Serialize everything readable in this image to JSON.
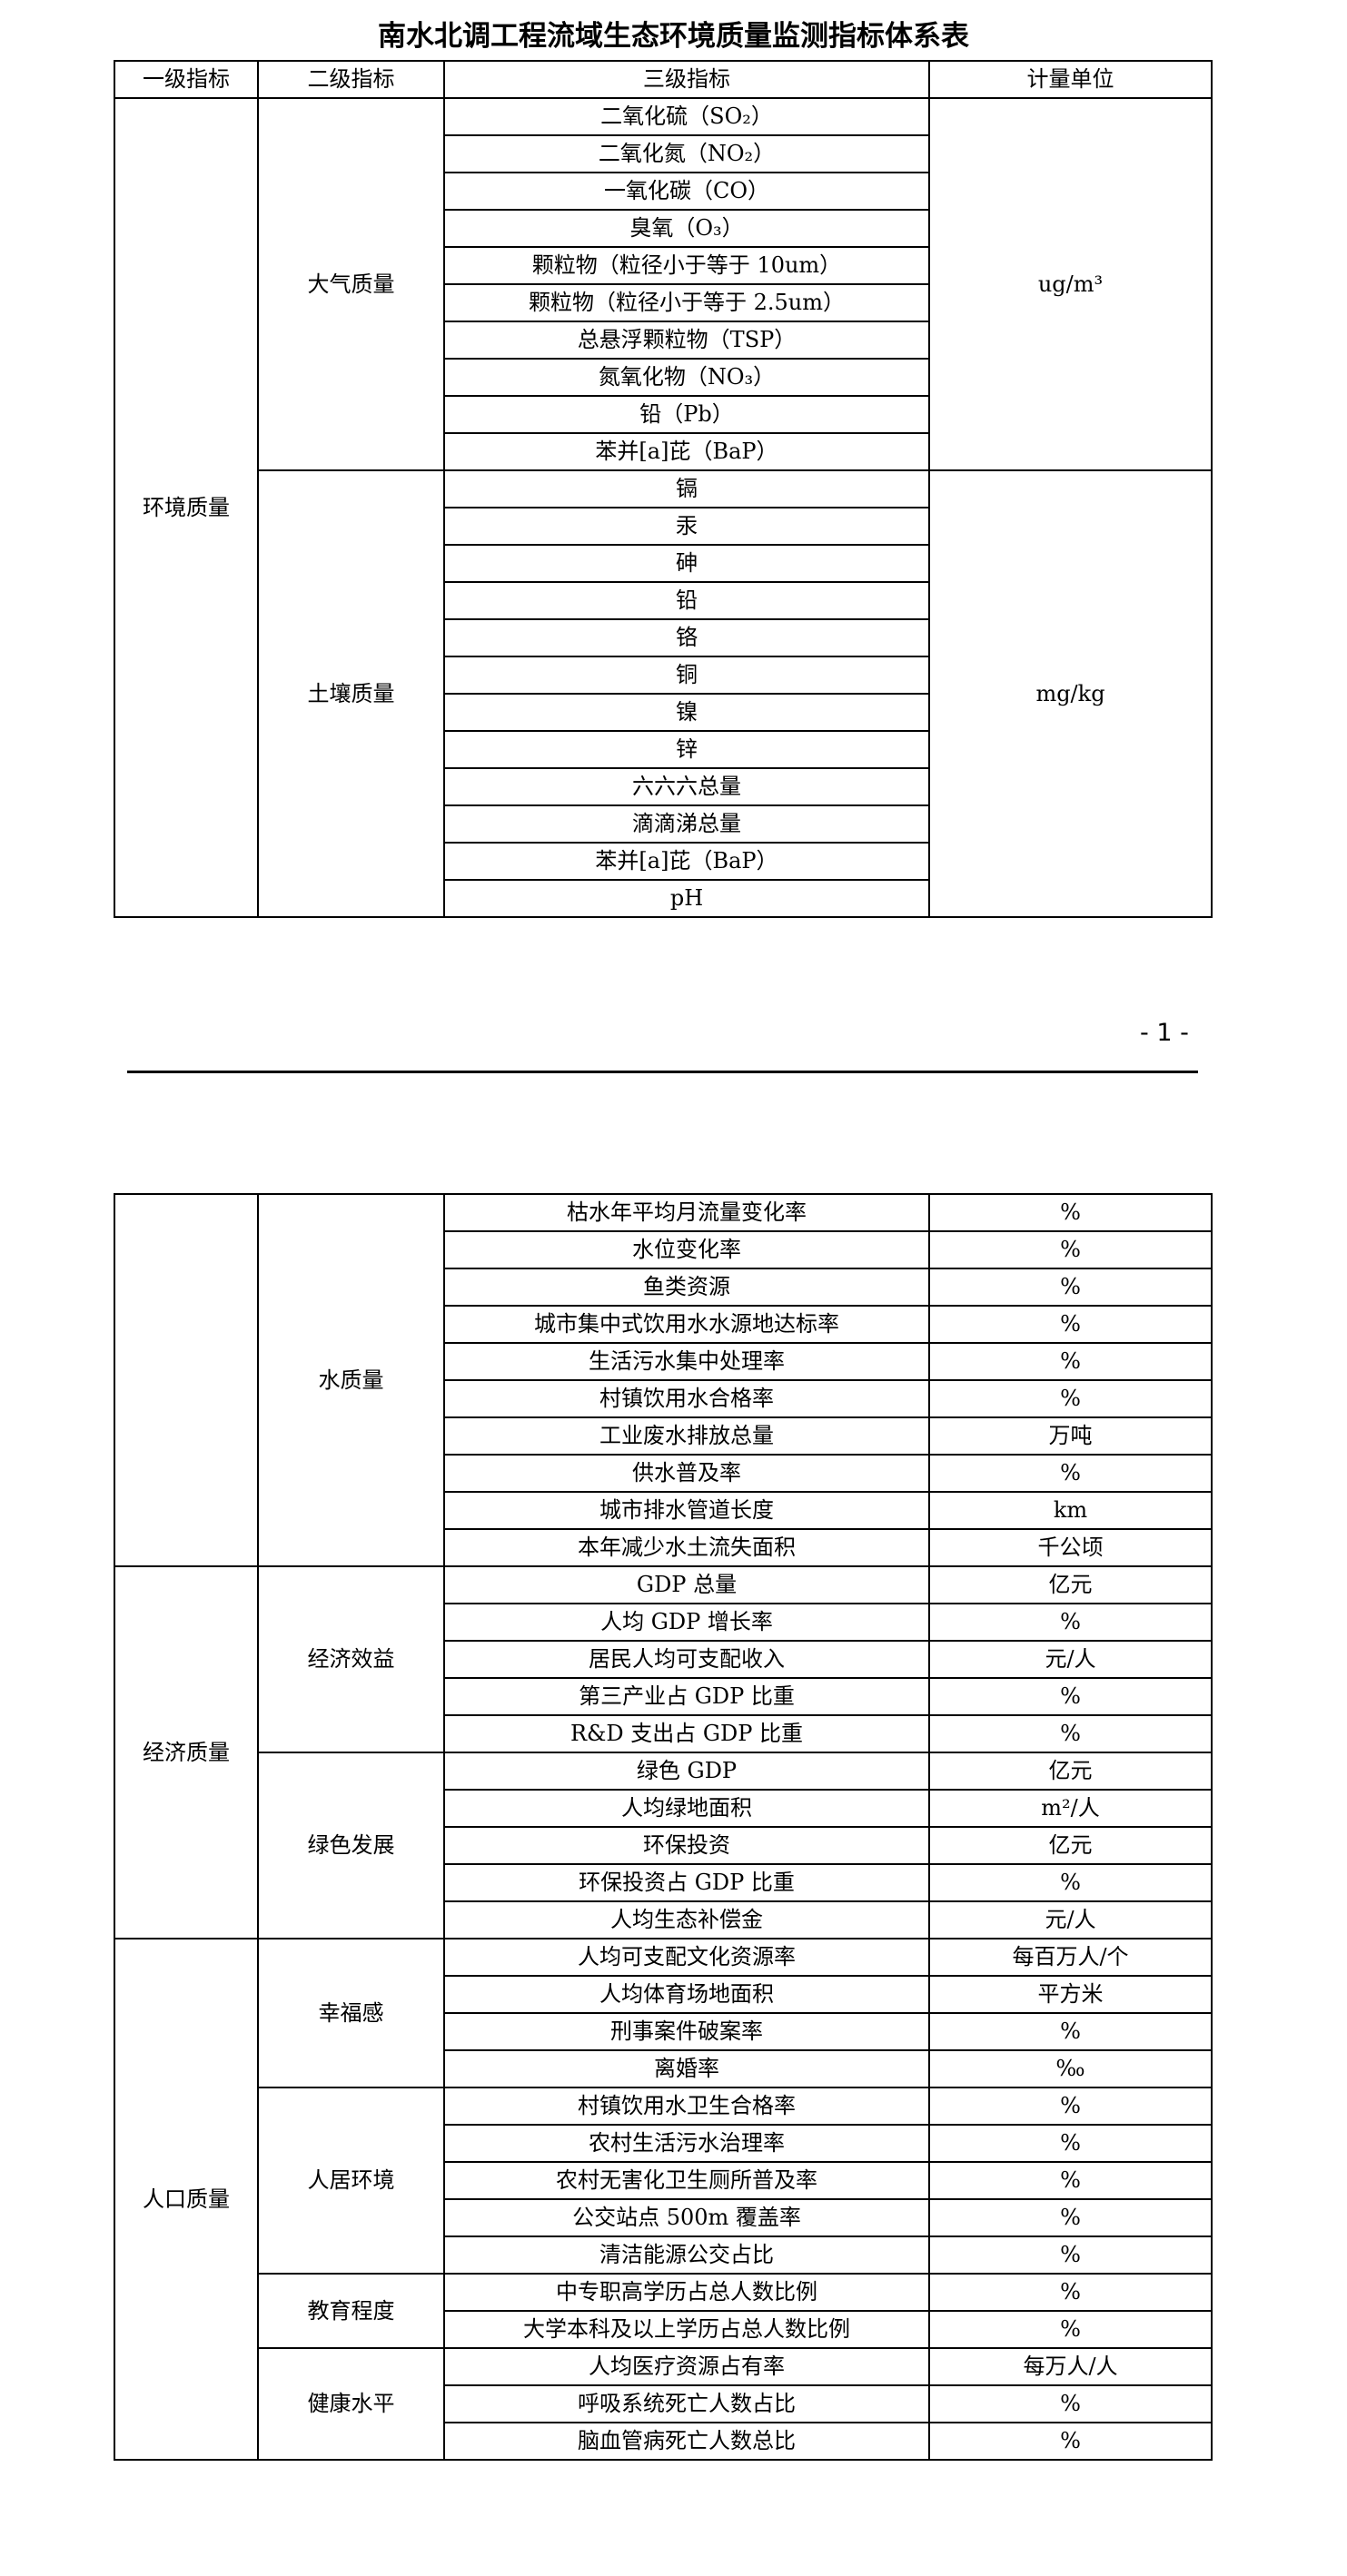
{
  "title": "南水北调工程流域生态环境质量监测指标体系表",
  "headers": [
    "一级指标",
    "二级指标",
    "三级指标",
    "计量单位"
  ],
  "page_number": "- 1 -",
  "tables": [
    {
      "sections": [
        {
          "level1": "环境质量",
          "subs": [
            {
              "level2": "大气质量",
              "unit": "ug/m³",
              "items": [
                {
                  "name": "二氧化硫（SO₂）"
                },
                {
                  "name": "二氧化氮（NO₂）"
                },
                {
                  "name": "一氧化碳（CO）"
                },
                {
                  "name": "臭氧（O₃）"
                },
                {
                  "name": "颗粒物（粒径小于等于 10um）"
                },
                {
                  "name": "颗粒物（粒径小于等于 2.5um）"
                },
                {
                  "name": "总悬浮颗粒物（TSP）"
                },
                {
                  "name": "氮氧化物（NO₃）"
                },
                {
                  "name": "铅（Pb）"
                },
                {
                  "name": "苯并[a]芘（BaP）"
                }
              ]
            },
            {
              "level2": "土壤质量",
              "unit": "mg/kg",
              "items": [
                {
                  "name": "镉"
                },
                {
                  "name": "汞"
                },
                {
                  "name": "砷"
                },
                {
                  "name": "铅"
                },
                {
                  "name": "铬"
                },
                {
                  "name": "铜"
                },
                {
                  "name": "镍"
                },
                {
                  "name": "锌"
                },
                {
                  "name": "六六六总量"
                },
                {
                  "name": "滴滴涕总量"
                },
                {
                  "name": "苯并[a]芘（BaP）"
                },
                {
                  "name": "pH"
                }
              ]
            }
          ]
        }
      ]
    },
    {
      "sections": [
        {
          "level1": "",
          "subs": [
            {
              "level2": "水质量",
              "items": [
                {
                  "name": "枯水年平均月流量变化率",
                  "unit": "%"
                },
                {
                  "name": "水位变化率",
                  "unit": "%"
                },
                {
                  "name": "鱼类资源",
                  "unit": "%"
                },
                {
                  "name": "城市集中式饮用水水源地达标率",
                  "unit": "%"
                },
                {
                  "name": "生活污水集中处理率",
                  "unit": "%"
                },
                {
                  "name": "村镇饮用水合格率",
                  "unit": "%"
                },
                {
                  "name": "工业废水排放总量",
                  "unit": "万吨"
                },
                {
                  "name": "供水普及率",
                  "unit": "%"
                },
                {
                  "name": "城市排水管道长度",
                  "unit": "km"
                },
                {
                  "name": "本年减少水土流失面积",
                  "unit": "千公顷"
                }
              ]
            }
          ]
        },
        {
          "level1": "经济质量",
          "subs": [
            {
              "level2": "经济效益",
              "items": [
                {
                  "name": "GDP 总量",
                  "unit": "亿元"
                },
                {
                  "name": "人均 GDP 增长率",
                  "unit": "%"
                },
                {
                  "name": "居民人均可支配收入",
                  "unit": "元/人"
                },
                {
                  "name": "第三产业占 GDP 比重",
                  "unit": "%"
                },
                {
                  "name": "R&D 支出占 GDP 比重",
                  "unit": "%"
                }
              ]
            },
            {
              "level2": "绿色发展",
              "items": [
                {
                  "name": "绿色 GDP",
                  "unit": "亿元"
                },
                {
                  "name": "人均绿地面积",
                  "unit": "m²/人"
                },
                {
                  "name": "环保投资",
                  "unit": "亿元"
                },
                {
                  "name": "环保投资占 GDP 比重",
                  "unit": "%"
                },
                {
                  "name": "人均生态补偿金",
                  "unit": "元/人"
                }
              ]
            }
          ]
        },
        {
          "level1": "人口质量",
          "subs": [
            {
              "level2": "幸福感",
              "items": [
                {
                  "name": "人均可支配文化资源率",
                  "unit": "每百万人/个"
                },
                {
                  "name": "人均体育场地面积",
                  "unit": "平方米"
                },
                {
                  "name": "刑事案件破案率",
                  "unit": "%"
                },
                {
                  "name": "离婚率",
                  "unit": "‰"
                }
              ]
            },
            {
              "level2": "人居环境",
              "items": [
                {
                  "name": "村镇饮用水卫生合格率",
                  "unit": "%"
                },
                {
                  "name": "农村生活污水治理率",
                  "unit": "%"
                },
                {
                  "name": "农村无害化卫生厕所普及率",
                  "unit": "%"
                },
                {
                  "name": "公交站点 500m 覆盖率",
                  "unit": "%"
                },
                {
                  "name": "清洁能源公交占比",
                  "unit": "%"
                }
              ]
            },
            {
              "level2": "教育程度",
              "items": [
                {
                  "name": "中专职高学历占总人数比例",
                  "unit": "%"
                },
                {
                  "name": "大学本科及以上学历占总人数比例",
                  "unit": "%"
                }
              ]
            },
            {
              "level2": "健康水平",
              "items": [
                {
                  "name": "人均医疗资源占有率",
                  "unit": "每万人/人"
                },
                {
                  "name": "呼吸系统死亡人数占比",
                  "unit": "%"
                },
                {
                  "name": "脑血管病死亡人数总比",
                  "unit": "%"
                }
              ]
            }
          ]
        }
      ]
    }
  ]
}
